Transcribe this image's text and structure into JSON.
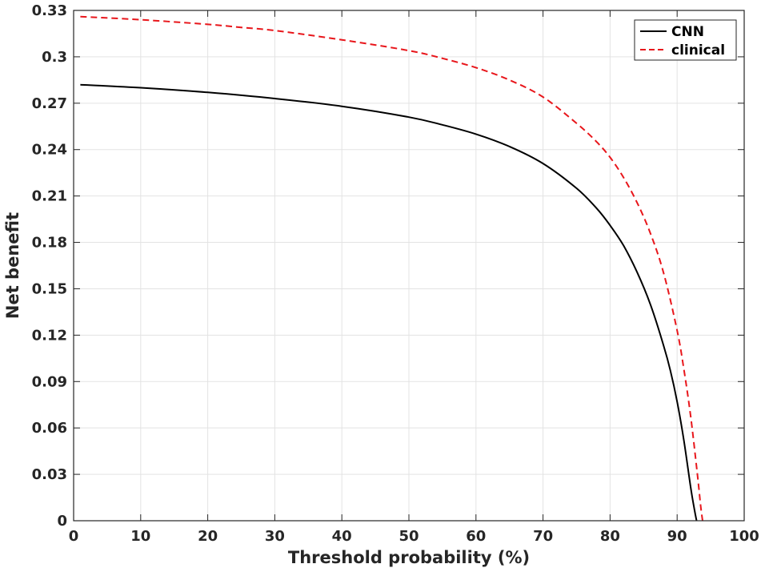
{
  "chart_data": {
    "type": "line",
    "title": "",
    "xlabel": "Threshold probability (%)",
    "ylabel": "Net benefit",
    "xlim": [
      0,
      100
    ],
    "ylim": [
      0,
      0.33
    ],
    "xticks": [
      "0",
      "10",
      "20",
      "30",
      "40",
      "50",
      "60",
      "70",
      "80",
      "90",
      "100"
    ],
    "yticks": [
      "0",
      "0.03",
      "0.06",
      "0.09",
      "0.12",
      "0.15",
      "0.18",
      "0.21",
      "0.24",
      "0.27",
      "0.3",
      "0.33"
    ],
    "grid": true,
    "legend_position": "top-right",
    "series": [
      {
        "name": "CNN",
        "color": "#000000",
        "style": "solid",
        "x": [
          1,
          10,
          20,
          30,
          40,
          50,
          55,
          60,
          65,
          70,
          75,
          78,
          80,
          82,
          84,
          86,
          88,
          89,
          90,
          91,
          92,
          92.5,
          92.9
        ],
        "y": [
          0.282,
          0.28,
          0.277,
          0.273,
          0.268,
          0.261,
          0.256,
          0.25,
          0.242,
          0.231,
          0.215,
          0.202,
          0.191,
          0.178,
          0.161,
          0.14,
          0.113,
          0.097,
          0.077,
          0.052,
          0.022,
          0.009,
          0.0
        ]
      },
      {
        "name": "clinical",
        "color": "#e8161b",
        "style": "dashed",
        "x": [
          1,
          10,
          20,
          25,
          30,
          40,
          50,
          55,
          60,
          65,
          70,
          75,
          78,
          80,
          82,
          84,
          86,
          88,
          90,
          91,
          92,
          93,
          93.5,
          93.8
        ],
        "y": [
          0.326,
          0.324,
          0.321,
          0.319,
          0.317,
          0.311,
          0.304,
          0.299,
          0.293,
          0.285,
          0.274,
          0.257,
          0.245,
          0.235,
          0.222,
          0.206,
          0.186,
          0.16,
          0.123,
          0.098,
          0.068,
          0.031,
          0.01,
          0.0
        ]
      }
    ]
  }
}
